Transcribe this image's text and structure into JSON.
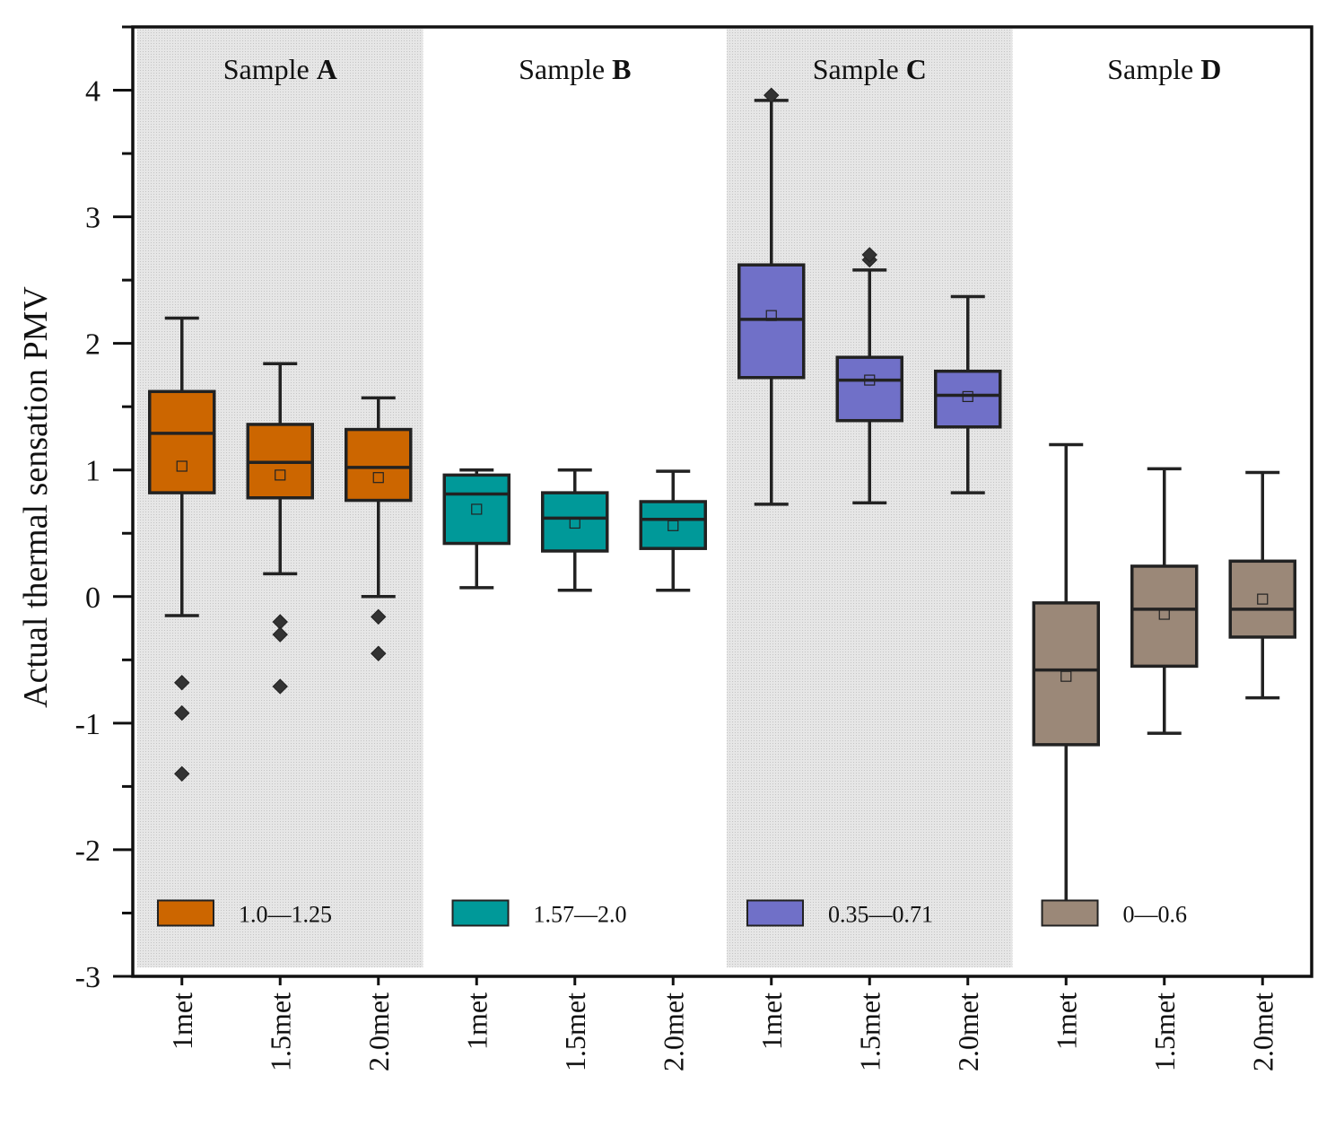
{
  "chart_data": {
    "type": "box",
    "title": "",
    "ylabel": "Actual thermal sensation PMV",
    "xlabel": "",
    "ylim": [
      -3,
      4.5
    ],
    "yticks": [
      -3,
      -2,
      -1,
      0,
      1,
      2,
      3,
      4
    ],
    "ytick_labels": [
      "-3",
      "-2",
      "-1",
      "0",
      "1",
      "2",
      "3",
      "4"
    ],
    "categories": [
      "1met",
      "1.5met",
      "2.0met",
      "1met",
      "1.5met",
      "2.0met",
      "1met",
      "1.5met",
      "2.0met",
      "1met",
      "1.5met",
      "2.0met"
    ],
    "groups": [
      {
        "name_prefix": "Sample ",
        "name_bold": "A",
        "shaded": true,
        "color": "#cc6600",
        "legend": "1.0—1.25",
        "boxes": [
          {
            "category": "1met",
            "whisker_low": -0.15,
            "q1": 0.82,
            "median": 1.29,
            "q3": 1.62,
            "whisker_high": 2.2,
            "mean": 1.03,
            "outliers": [
              -0.68,
              -0.92,
              -1.4
            ]
          },
          {
            "category": "1.5met",
            "whisker_low": 0.18,
            "q1": 0.78,
            "median": 1.06,
            "q3": 1.36,
            "whisker_high": 1.84,
            "mean": 0.96,
            "outliers": [
              -0.2,
              -0.3,
              -0.71
            ]
          },
          {
            "category": "2.0met",
            "whisker_low": 0.0,
            "q1": 0.76,
            "median": 1.02,
            "q3": 1.32,
            "whisker_high": 1.57,
            "mean": 0.94,
            "outliers": [
              -0.16,
              -0.45
            ]
          }
        ]
      },
      {
        "name_prefix": "Sample ",
        "name_bold": "B",
        "shaded": false,
        "color": "#009999",
        "legend": "1.57—2.0",
        "boxes": [
          {
            "category": "1met",
            "whisker_low": 0.07,
            "q1": 0.42,
            "median": 0.81,
            "q3": 0.96,
            "whisker_high": 1.0,
            "mean": 0.69,
            "outliers": []
          },
          {
            "category": "1.5met",
            "whisker_low": 0.05,
            "q1": 0.36,
            "median": 0.62,
            "q3": 0.82,
            "whisker_high": 1.0,
            "mean": 0.58,
            "outliers": []
          },
          {
            "category": "2.0met",
            "whisker_low": 0.05,
            "q1": 0.38,
            "median": 0.61,
            "q3": 0.75,
            "whisker_high": 0.99,
            "mean": 0.56,
            "outliers": []
          }
        ]
      },
      {
        "name_prefix": "Sample ",
        "name_bold": "C",
        "shaded": true,
        "color": "#7070c8",
        "legend": "0.35—0.71",
        "boxes": [
          {
            "category": "1met",
            "whisker_low": 0.73,
            "q1": 1.73,
            "median": 2.19,
            "q3": 2.62,
            "whisker_high": 3.92,
            "mean": 2.22,
            "outliers": [
              3.96
            ]
          },
          {
            "category": "1.5met",
            "whisker_low": 0.74,
            "q1": 1.39,
            "median": 1.71,
            "q3": 1.89,
            "whisker_high": 2.58,
            "mean": 1.71,
            "outliers": [
              2.66,
              2.7
            ]
          },
          {
            "category": "2.0met",
            "whisker_low": 0.82,
            "q1": 1.34,
            "median": 1.59,
            "q3": 1.78,
            "whisker_high": 2.37,
            "mean": 1.58,
            "outliers": []
          }
        ]
      },
      {
        "name_prefix": "Sample ",
        "name_bold": "D",
        "shaded": false,
        "color": "#9b8878",
        "legend": "0—0.6",
        "boxes": [
          {
            "category": "1met",
            "whisker_low": -2.52,
            "q1": -1.17,
            "median": -0.58,
            "q3": -0.05,
            "whisker_high": 1.2,
            "mean": -0.63,
            "outliers": []
          },
          {
            "category": "1.5met",
            "whisker_low": -1.08,
            "q1": -0.55,
            "median": -0.1,
            "q3": 0.24,
            "whisker_high": 1.01,
            "mean": -0.14,
            "outliers": []
          },
          {
            "category": "2.0met",
            "whisker_low": -0.8,
            "q1": -0.32,
            "median": -0.1,
            "q3": 0.28,
            "whisker_high": 0.98,
            "mean": -0.02,
            "outliers": []
          }
        ]
      }
    ]
  }
}
